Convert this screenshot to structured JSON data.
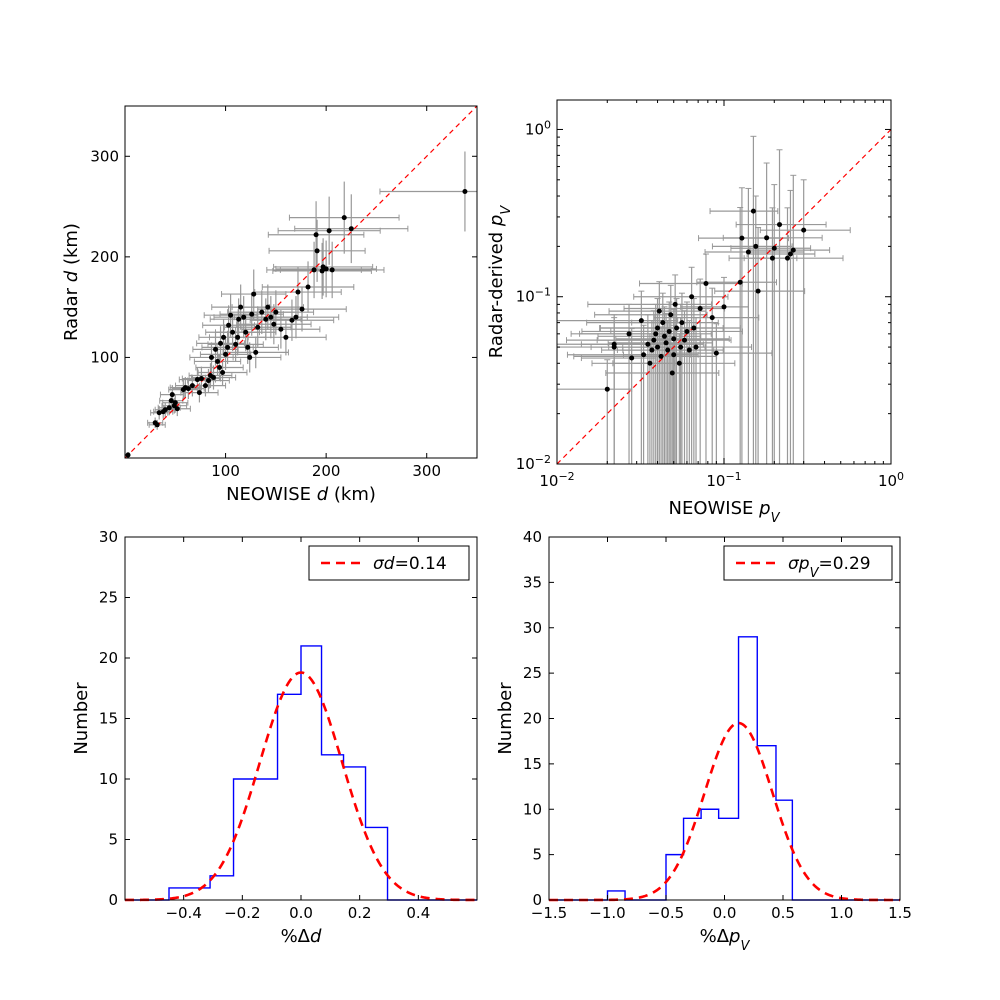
{
  "chart_data": [
    {
      "type": "scatter",
      "panel": "top-left",
      "title": "",
      "xlabel_prefix": "NEOWISE",
      "xlabel_var": "d",
      "xlabel_unit": "(km)",
      "ylabel_prefix": "Radar",
      "ylabel_var": "d",
      "ylabel_unit": "(km)",
      "xlim": [
        0,
        350
      ],
      "ylim": [
        0,
        350
      ],
      "xticks": [
        100,
        200,
        300
      ],
      "yticks": [
        100,
        200,
        300
      ],
      "xtick_labels": [
        "100",
        "200",
        "300"
      ],
      "ytick_labels": [
        "100",
        "200",
        "300"
      ],
      "reference_line": "y = x",
      "xerr_frac": 0.25,
      "yerr_frac": 0.15,
      "points": [
        [
          3,
          3
        ],
        [
          30,
          35
        ],
        [
          32,
          33
        ],
        [
          34,
          45
        ],
        [
          38,
          46
        ],
        [
          40,
          48
        ],
        [
          44,
          50
        ],
        [
          46,
          57
        ],
        [
          47,
          63
        ],
        [
          49,
          52
        ],
        [
          50,
          55
        ],
        [
          52,
          49
        ],
        [
          58,
          68
        ],
        [
          60,
          70
        ],
        [
          63,
          69
        ],
        [
          67,
          72
        ],
        [
          72,
          78
        ],
        [
          74,
          65
        ],
        [
          76,
          79
        ],
        [
          80,
          72
        ],
        [
          83,
          77
        ],
        [
          85,
          82
        ],
        [
          86,
          100
        ],
        [
          88,
          80
        ],
        [
          90,
          108
        ],
        [
          92,
          96
        ],
        [
          94,
          90
        ],
        [
          95,
          114
        ],
        [
          97,
          85
        ],
        [
          98,
          120
        ],
        [
          100,
          103
        ],
        [
          102,
          110
        ],
        [
          103,
          132
        ],
        [
          105,
          142
        ],
        [
          107,
          125
        ],
        [
          110,
          113
        ],
        [
          112,
          120
        ],
        [
          113,
          138
        ],
        [
          115,
          150
        ],
        [
          118,
          140
        ],
        [
          120,
          125
        ],
        [
          122,
          110
        ],
        [
          124,
          100
        ],
        [
          126,
          143
        ],
        [
          128,
          163
        ],
        [
          130,
          105
        ],
        [
          132,
          130
        ],
        [
          136,
          145
        ],
        [
          140,
          138
        ],
        [
          142,
          150
        ],
        [
          145,
          140
        ],
        [
          148,
          133
        ],
        [
          150,
          145
        ],
        [
          155,
          128
        ],
        [
          160,
          120
        ],
        [
          166,
          137
        ],
        [
          170,
          140
        ],
        [
          172,
          165
        ],
        [
          176,
          148
        ],
        [
          182,
          170
        ],
        [
          188,
          187
        ],
        [
          190,
          222
        ],
        [
          191,
          206
        ],
        [
          196,
          186
        ],
        [
          197,
          190
        ],
        [
          200,
          188
        ],
        [
          203,
          226
        ],
        [
          206,
          187
        ],
        [
          218,
          239
        ],
        [
          225,
          228
        ],
        [
          338,
          265
        ]
      ]
    },
    {
      "type": "scatter",
      "panel": "top-right",
      "title": "",
      "xscale": "log",
      "yscale": "log",
      "xlabel_prefix": "NEOWISE",
      "xlabel_var": "pV",
      "ylabel_prefix": "Radar-derived",
      "ylabel_var": "pV",
      "xlim": [
        0.01,
        1
      ],
      "ylim": [
        0.01,
        1.5
      ],
      "xticks": [
        0.01,
        0.1,
        1
      ],
      "yticks": [
        0.01,
        0.1,
        1
      ],
      "tick_base": "10",
      "tick_exps": [
        "−2",
        "−1",
        "0"
      ],
      "reference_line": "y = x",
      "points": [
        [
          0.02,
          0.028
        ],
        [
          0.022,
          0.05
        ],
        [
          0.022,
          0.052
        ],
        [
          0.027,
          0.06
        ],
        [
          0.028,
          0.043
        ],
        [
          0.032,
          0.072
        ],
        [
          0.033,
          0.045
        ],
        [
          0.035,
          0.052
        ],
        [
          0.036,
          0.04
        ],
        [
          0.037,
          0.048
        ],
        [
          0.038,
          0.055
        ],
        [
          0.039,
          0.06
        ],
        [
          0.04,
          0.05
        ],
        [
          0.04,
          0.065
        ],
        [
          0.041,
          0.082
        ],
        [
          0.042,
          0.044
        ],
        [
          0.043,
          0.07
        ],
        [
          0.044,
          0.058
        ],
        [
          0.045,
          0.053
        ],
        [
          0.046,
          0.048
        ],
        [
          0.047,
          0.062
        ],
        [
          0.048,
          0.078
        ],
        [
          0.049,
          0.035
        ],
        [
          0.05,
          0.056
        ],
        [
          0.05,
          0.045
        ],
        [
          0.051,
          0.09
        ],
        [
          0.052,
          0.065
        ],
        [
          0.054,
          0.04
        ],
        [
          0.055,
          0.05
        ],
        [
          0.056,
          0.07
        ],
        [
          0.058,
          0.055
        ],
        [
          0.06,
          0.062
        ],
        [
          0.062,
          0.048
        ],
        [
          0.064,
          0.1
        ],
        [
          0.066,
          0.065
        ],
        [
          0.068,
          0.05
        ],
        [
          0.072,
          0.085
        ],
        [
          0.078,
          0.12
        ],
        [
          0.085,
          0.075
        ],
        [
          0.09,
          0.046
        ],
        [
          0.1,
          0.087
        ],
        [
          0.125,
          0.122
        ],
        [
          0.128,
          0.224
        ],
        [
          0.14,
          0.185
        ],
        [
          0.15,
          0.325
        ],
        [
          0.155,
          0.2
        ],
        [
          0.16,
          0.108
        ],
        [
          0.18,
          0.225
        ],
        [
          0.195,
          0.17
        ],
        [
          0.2,
          0.195
        ],
        [
          0.215,
          0.27
        ],
        [
          0.24,
          0.17
        ],
        [
          0.25,
          0.18
        ],
        [
          0.26,
          0.19
        ],
        [
          0.3,
          0.25
        ]
      ]
    },
    {
      "type": "histogram",
      "panel": "bottom-left",
      "title": "",
      "xlabel_text": "%Δd",
      "ylabel": "Number",
      "xlim": [
        -0.6,
        0.6
      ],
      "ylim": [
        0,
        30
      ],
      "xticks": [
        -0.4,
        -0.2,
        0.0,
        0.2,
        0.4
      ],
      "xtick_labels": [
        "−0.4",
        "−0.2",
        "0.0",
        "0.2",
        "0.4"
      ],
      "yticks": [
        0,
        5,
        10,
        15,
        20,
        25,
        30
      ],
      "ytick_labels": [
        "0",
        "5",
        "10",
        "15",
        "20",
        "25",
        "30"
      ],
      "bin_edges": [
        -0.6,
        -0.45,
        -0.31,
        -0.23,
        -0.08,
        0.0,
        0.07,
        0.145,
        0.22,
        0.295,
        0.6
      ],
      "counts": [
        0,
        1,
        2,
        10,
        17,
        21,
        12,
        11,
        6,
        0
      ],
      "fit": {
        "mu": 0.0,
        "sigma": 0.14,
        "amplitude": 18.8
      },
      "legend_sym": "σd",
      "legend_eq": "=",
      "legend_value": "0.14",
      "legend_position": "top-right"
    },
    {
      "type": "histogram",
      "panel": "bottom-right",
      "title": "",
      "xlabel_text": "%ΔpV",
      "ylabel": "Number",
      "xlim": [
        -1.5,
        1.5
      ],
      "ylim": [
        0,
        40
      ],
      "xticks": [
        -1.5,
        -1.0,
        -0.5,
        0.0,
        0.5,
        1.0,
        1.5
      ],
      "xtick_labels": [
        "−1.5",
        "−1.0",
        "−0.5",
        "0.0",
        "0.5",
        "1.0",
        "1.5"
      ],
      "yticks": [
        0,
        5,
        10,
        15,
        20,
        25,
        30,
        35,
        40
      ],
      "ytick_labels": [
        "0",
        "5",
        "10",
        "15",
        "20",
        "25",
        "30",
        "35",
        "40"
      ],
      "bin_edges": [
        -1.5,
        -1.0,
        -0.85,
        -0.5,
        -0.35,
        -0.2,
        -0.05,
        0.12,
        0.28,
        0.44,
        0.58,
        1.5
      ],
      "counts": [
        0,
        1,
        0,
        5,
        9,
        10,
        9,
        29,
        17,
        11,
        0
      ],
      "fit": {
        "mu": 0.12,
        "sigma": 0.29,
        "amplitude": 19.5
      },
      "legend_sym": "σpV",
      "legend_eq": "=",
      "legend_value": "0.29",
      "legend_position": "top-right"
    }
  ],
  "colors": {
    "points": "#000000",
    "errorbars": "#999999",
    "reference_line": "#ff0000",
    "histogram": "#0000ff",
    "fit": "#ff0000",
    "axes": "#000000"
  }
}
